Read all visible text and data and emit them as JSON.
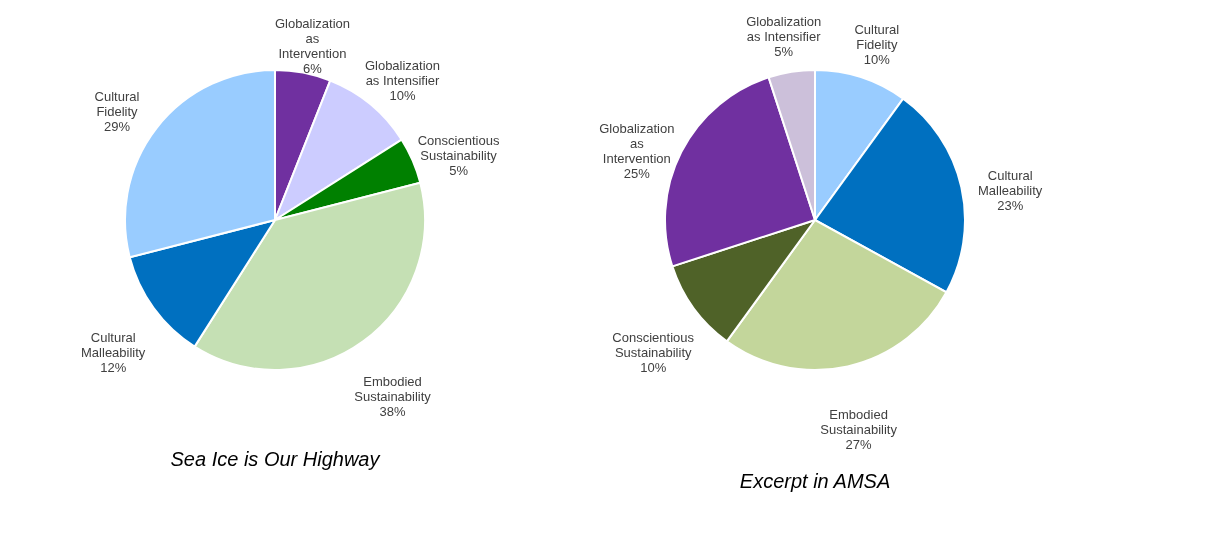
{
  "chart_data": [
    {
      "type": "pie",
      "title": "Sea Ice is Our Highway",
      "categories": [
        "Globalization as Intervention",
        "Globalization as Intensifier",
        "Conscientious Sustainability",
        "Embodied Sustainability",
        "Cultural Malleability",
        "Cultural Fidelity"
      ],
      "values": [
        6,
        10,
        5,
        38,
        12,
        29
      ],
      "value_labels": [
        "6%",
        "10%",
        "5%",
        "38%",
        "12%",
        "29%"
      ],
      "colors": [
        "#7030a0",
        "#ccccff",
        "#008000",
        "#c5e0b4",
        "#0070c0",
        "#99ccff"
      ],
      "legend": false
    },
    {
      "type": "pie",
      "title": "Excerpt in AMSA",
      "categories": [
        "Cultural Fidelity",
        "Cultural Malleability",
        "Embodied Sustainability",
        "Conscientious Sustainability",
        "Globalization as Intervention",
        "Globalization as Intensifier"
      ],
      "values": [
        10,
        23,
        27,
        10,
        25,
        5
      ],
      "value_labels": [
        "10%",
        "23%",
        "27%",
        "10%",
        "25%",
        "5%"
      ],
      "colors": [
        "#99ccff",
        "#0070c0",
        "#c3d69b",
        "#4f6228",
        "#7030a0",
        "#ccc0da"
      ],
      "legend": false
    }
  ]
}
